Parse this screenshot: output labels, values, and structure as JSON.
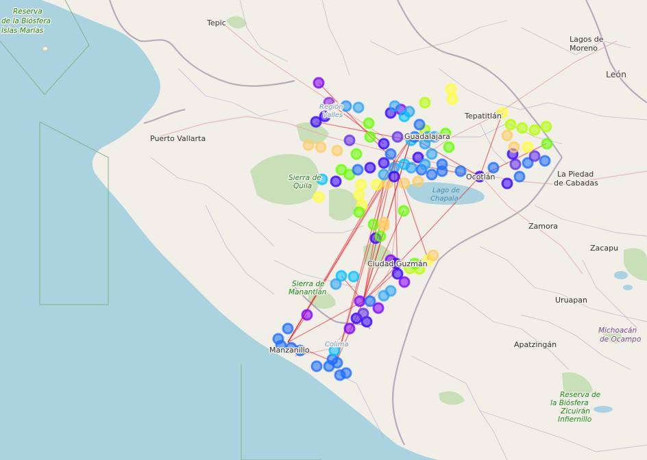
{
  "map": {
    "places": [
      {
        "name": "Tepic",
        "style": "city"
      },
      {
        "name": "Puerto Vallarta",
        "style": "city"
      },
      {
        "name": "Tepatitlán",
        "style": "city"
      },
      {
        "name": "Lagos de",
        "style": "city"
      },
      {
        "name": "Moreno",
        "style": "city"
      },
      {
        "name": "León",
        "style": "city-lg"
      },
      {
        "name": "La Piedad",
        "style": "city"
      },
      {
        "name": "de Cabadas",
        "style": "city"
      },
      {
        "name": "Zamora",
        "style": "city"
      },
      {
        "name": "Zacapu",
        "style": "city"
      },
      {
        "name": "Uruapan",
        "style": "city"
      },
      {
        "name": "Apatzingán",
        "style": "city"
      },
      {
        "name": "Ciudad Guzmán",
        "style": "city"
      },
      {
        "name": "Manzanillo",
        "style": "city"
      },
      {
        "name": "Colima",
        "style": "city-faint"
      },
      {
        "name": "Ocotlán",
        "style": "city"
      },
      {
        "name": "Guadalajara",
        "style": "city"
      },
      {
        "name": "Región",
        "style": "city-faint"
      },
      {
        "name": "Valles",
        "style": "city-faint"
      },
      {
        "name": "Lago de",
        "style": "lake"
      },
      {
        "name": "Chapala",
        "style": "lake"
      },
      {
        "name": "Sierra de",
        "style": "green"
      },
      {
        "name": "Quila",
        "style": "green"
      },
      {
        "name": "Sierra de",
        "style": "green"
      },
      {
        "name": "Manantlán",
        "style": "green"
      },
      {
        "name": "Reserva",
        "style": "green"
      },
      {
        "name": "de la Biósfera",
        "style": "green"
      },
      {
        "name": "Islas Marías",
        "style": "green"
      },
      {
        "name": "Reserva de",
        "style": "green"
      },
      {
        "name": "la Biósfera",
        "style": "green"
      },
      {
        "name": "Zicuirán",
        "style": "green"
      },
      {
        "name": "Infiernillo",
        "style": "green"
      },
      {
        "name": "Michoacán",
        "style": "purple"
      },
      {
        "name": "de Ocampo",
        "style": "purple"
      }
    ],
    "colors": {
      "land": "#f2efe9",
      "sea": "#aad3df",
      "forest": "#add19e",
      "border_state": "#9e8fa7",
      "border_muni": "#b9a9c4",
      "link": "#e8232b"
    }
  }
}
